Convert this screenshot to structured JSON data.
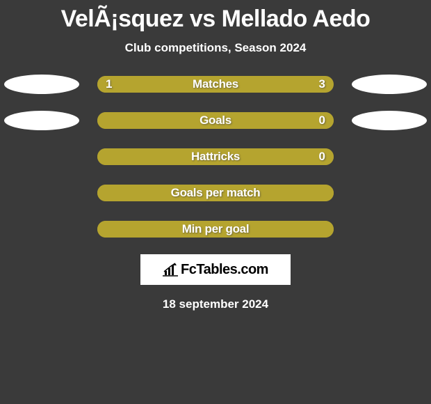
{
  "title": "VelÃ¡squez vs Mellado Aedo",
  "subtitle": "Club competitions, Season 2024",
  "colors": {
    "left": "#b5a42f",
    "right": "#b5a42f",
    "ellipse": "#ffffff",
    "bg": "#3a3a3a"
  },
  "stats": [
    {
      "label": "Matches",
      "left_val": "1",
      "right_val": "3",
      "left_pct": 25,
      "right_pct": 75,
      "show_ellipses": true
    },
    {
      "label": "Goals",
      "left_val": "",
      "right_val": "0",
      "left_pct": 100,
      "right_pct": 0,
      "show_ellipses": true
    },
    {
      "label": "Hattricks",
      "left_val": "",
      "right_val": "0",
      "left_pct": 100,
      "right_pct": 0,
      "show_ellipses": false
    },
    {
      "label": "Goals per match",
      "left_val": "",
      "right_val": "",
      "left_pct": 100,
      "right_pct": 0,
      "show_ellipses": false
    },
    {
      "label": "Min per goal",
      "left_val": "",
      "right_val": "",
      "left_pct": 100,
      "right_pct": 0,
      "show_ellipses": false
    }
  ],
  "brand": "FcTables.com",
  "date": "18 september 2024"
}
